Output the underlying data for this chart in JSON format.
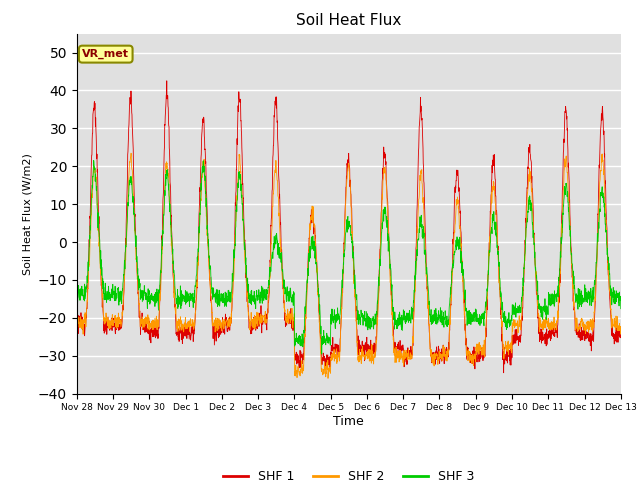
{
  "title": "Soil Heat Flux",
  "ylabel": "Soil Heat Flux (W/m2)",
  "xlabel": "Time",
  "ylim": [
    -40,
    55
  ],
  "yticks": [
    -40,
    -30,
    -20,
    -10,
    0,
    10,
    20,
    30,
    40,
    50
  ],
  "colors": {
    "SHF 1": "#dd0000",
    "SHF 2": "#ff9900",
    "SHF 3": "#00cc00"
  },
  "legend_labels": [
    "SHF 1",
    "SHF 2",
    "SHF 3"
  ],
  "annotation": "VR_met",
  "background_color": "#e0e0e0",
  "xtick_labels": [
    "Nov 28",
    "Nov 29",
    "Nov 30",
    "Dec 1",
    "Dec 2",
    "Dec 3",
    "Dec 4",
    "Dec 5",
    "Dec 6",
    "Dec 7",
    "Dec 8",
    "Dec 9",
    "Dec 10",
    "Dec 11",
    "Dec 12",
    "Dec 13"
  ],
  "n_days": 15,
  "points_per_day": 144
}
